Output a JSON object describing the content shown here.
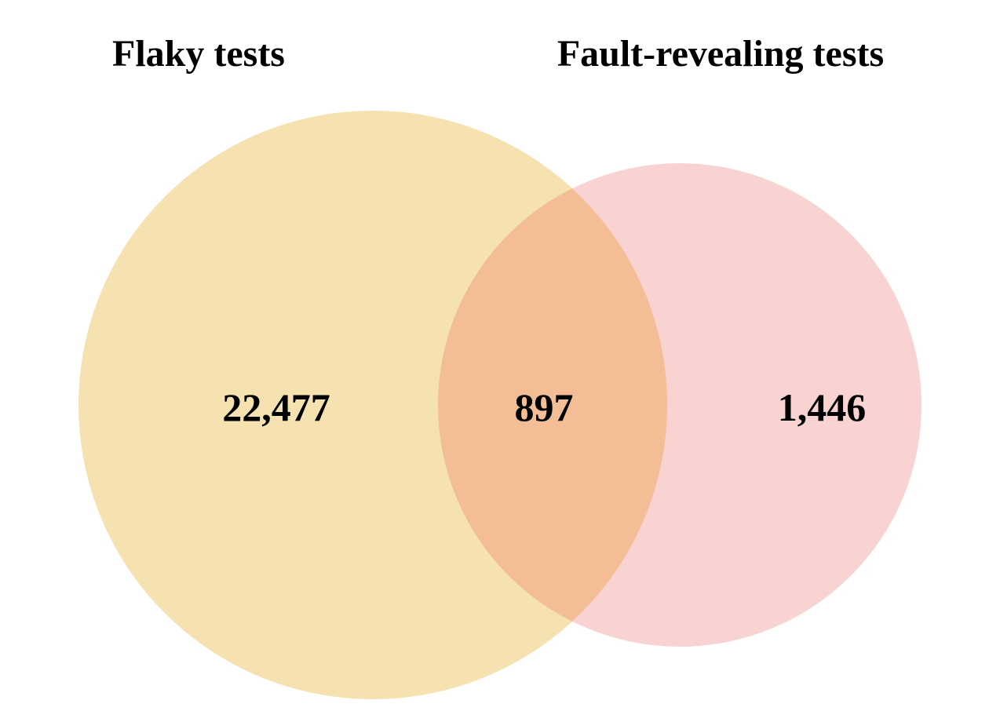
{
  "venn": {
    "sets": [
      {
        "name": "Flaky tests",
        "color": "#f5e2b0"
      },
      {
        "name": "Fault-revealing tests",
        "color": "#f9d3d2"
      }
    ],
    "regions": {
      "flaky_only": "22,477",
      "both": "897",
      "fault_revealing_only": "1,446"
    },
    "overlap_color": "#f3bd95"
  }
}
